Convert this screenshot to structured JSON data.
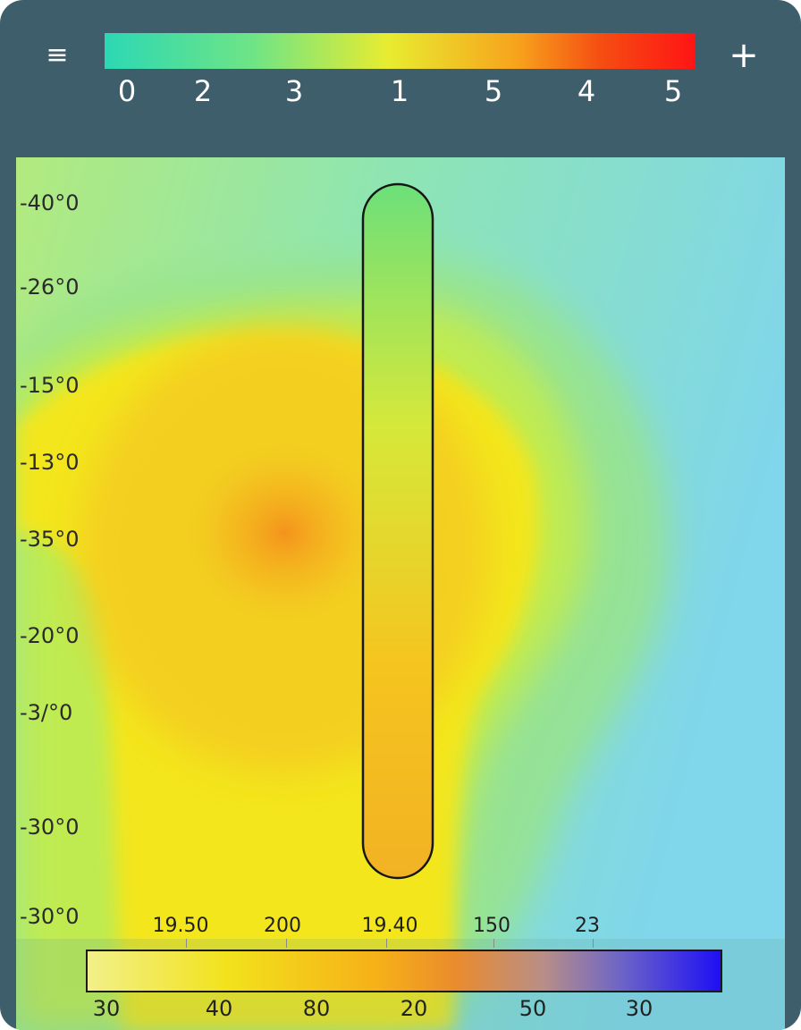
{
  "toolbar": {
    "menu_icon": "menu-icon",
    "menu_glyph": "≡",
    "add_icon": "plus-icon",
    "add_glyph": "+",
    "scale_labels": [
      "0",
      "2",
      "3",
      "1",
      "5",
      "4",
      "5"
    ]
  },
  "map": {
    "y_labels": [
      "-40°0",
      "-26°0",
      "-15°0",
      "-13°0",
      "-35°0",
      "-20°0",
      "-3/°0",
      "-30°0",
      "-30°0"
    ]
  },
  "bottom_legend": {
    "top_labels": [
      "19.50",
      "200",
      "19.40",
      "150",
      "23"
    ],
    "labels": [
      "30",
      "40",
      "80",
      "20",
      "50",
      "30"
    ]
  },
  "colors": {
    "frame": "#3f5e6c",
    "scale_low": "#2cd8b4",
    "scale_high": "#ff1414",
    "legend_low": "#f2f08a",
    "legend_high": "#1e10f4"
  }
}
